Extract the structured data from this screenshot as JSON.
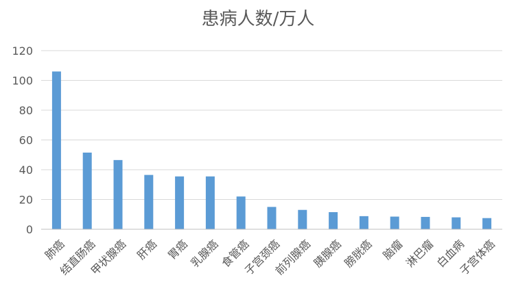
{
  "chart_data": {
    "type": "bar",
    "title": "患病人数/万人",
    "xlabel": "",
    "ylabel": "",
    "ylim": [
      0,
      120
    ],
    "yticks": [
      0,
      20,
      40,
      60,
      80,
      100,
      120
    ],
    "grid": true,
    "legend": "none",
    "bar_color": "#5B9BD5",
    "categories": [
      "肺癌",
      "结直肠癌",
      "甲状腺癌",
      "肝癌",
      "胃癌",
      "乳腺癌",
      "食管癌",
      "子宫颈癌",
      "前列腺癌",
      "胰腺癌",
      "膀胱癌",
      "脑瘤",
      "淋巴瘤",
      "白血病",
      "子宫体癌"
    ],
    "values": [
      106,
      51.5,
      46.5,
      36.5,
      35.5,
      35.5,
      22,
      15,
      13,
      11.5,
      8.8,
      8.5,
      8.3,
      8,
      7.5
    ]
  }
}
